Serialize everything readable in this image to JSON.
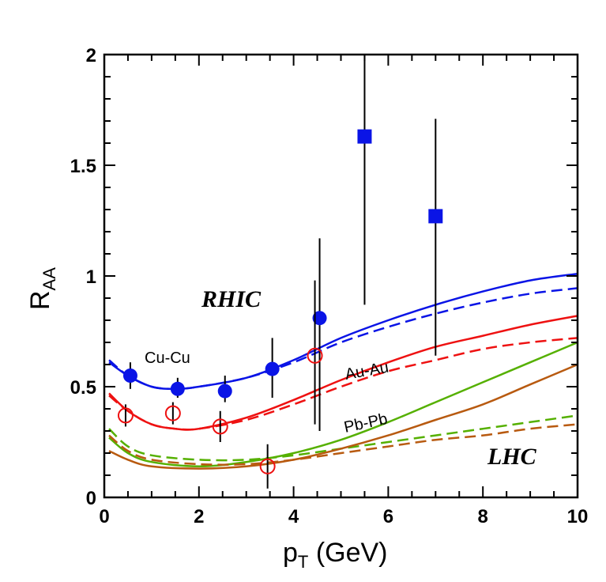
{
  "chart_data": {
    "type": "line",
    "xlabel": "p",
    "xlabel_sub": "T",
    "xlabel_unit": " (GeV)",
    "ylabel": "R",
    "ylabel_sub": "AA",
    "xlim": [
      0,
      10
    ],
    "ylim": [
      0,
      2
    ],
    "xticks": [
      "0",
      "2",
      "4",
      "6",
      "8",
      "10"
    ],
    "yticks": [
      "0",
      "0.5",
      "1",
      "1.5",
      "2"
    ],
    "grid": false,
    "annotations": {
      "rhic": "RHIC",
      "cucu": "Cu-Cu",
      "auau": "Au-Au",
      "pbpb": "Pb-Pb",
      "lhc": "LHC"
    },
    "colors": {
      "cucu": "#0a14e6",
      "auau": "#ee1111",
      "pbpb": "#55b000",
      "lhc2": "#b85a10",
      "err": "#000000"
    },
    "series": [
      {
        "key": "cucu",
        "style": "solid",
        "x": [
          0.1,
          0.5,
          1,
          1.5,
          2,
          3,
          4,
          5,
          6,
          7,
          8,
          9,
          10
        ],
        "y": [
          0.61,
          0.55,
          0.5,
          0.49,
          0.5,
          0.54,
          0.62,
          0.72,
          0.8,
          0.87,
          0.93,
          0.98,
          1.01
        ]
      },
      {
        "key": "cucu",
        "style": "dashed",
        "x": [
          0.1,
          0.5,
          1,
          1.5,
          2,
          3,
          4,
          5,
          6,
          7,
          8,
          9,
          10
        ],
        "y": [
          0.62,
          0.55,
          0.5,
          0.49,
          0.5,
          0.54,
          0.61,
          0.7,
          0.77,
          0.83,
          0.88,
          0.92,
          0.945
        ]
      },
      {
        "key": "auau",
        "style": "solid",
        "x": [
          0.1,
          0.5,
          1,
          1.5,
          2,
          3,
          4,
          5,
          6,
          7,
          8,
          9,
          10
        ],
        "y": [
          0.47,
          0.39,
          0.33,
          0.31,
          0.31,
          0.36,
          0.44,
          0.53,
          0.61,
          0.68,
          0.73,
          0.78,
          0.82
        ]
      },
      {
        "key": "auau",
        "style": "dashed",
        "x": [
          0.1,
          0.5,
          1,
          1.5,
          2,
          3,
          4,
          5,
          6,
          7,
          8,
          9,
          10
        ],
        "y": [
          0.46,
          0.39,
          0.33,
          0.31,
          0.31,
          0.35,
          0.42,
          0.5,
          0.57,
          0.62,
          0.67,
          0.7,
          0.72
        ]
      },
      {
        "key": "pbpb",
        "style": "solid",
        "x": [
          0.1,
          0.5,
          1,
          2,
          3,
          4,
          5,
          6,
          7,
          8,
          9,
          10
        ],
        "y": [
          0.27,
          0.2,
          0.16,
          0.14,
          0.16,
          0.2,
          0.26,
          0.34,
          0.43,
          0.52,
          0.61,
          0.7
        ]
      },
      {
        "key": "pbpb",
        "style": "dashed",
        "x": [
          0.1,
          0.5,
          1,
          2,
          3,
          4,
          5,
          6,
          7,
          8,
          9,
          10
        ],
        "y": [
          0.31,
          0.23,
          0.19,
          0.17,
          0.17,
          0.19,
          0.22,
          0.25,
          0.28,
          0.31,
          0.34,
          0.37
        ]
      },
      {
        "key": "lhc2",
        "style": "solid",
        "x": [
          0.1,
          0.5,
          1,
          2,
          3,
          4,
          5,
          6,
          7,
          8,
          9,
          10
        ],
        "y": [
          0.21,
          0.17,
          0.14,
          0.13,
          0.14,
          0.17,
          0.22,
          0.28,
          0.35,
          0.42,
          0.51,
          0.6
        ]
      },
      {
        "key": "lhc2",
        "style": "dashed",
        "x": [
          0.1,
          0.5,
          1,
          2,
          3,
          4,
          5,
          6,
          7,
          8,
          9,
          10
        ],
        "y": [
          0.28,
          0.21,
          0.17,
          0.15,
          0.15,
          0.17,
          0.2,
          0.23,
          0.26,
          0.28,
          0.31,
          0.33
        ]
      }
    ],
    "points": [
      {
        "key": "cucu",
        "marker": "filled-circle",
        "x": [
          0.55,
          1.55,
          2.55,
          3.55,
          4.55
        ],
        "y": [
          0.55,
          0.49,
          0.48,
          0.58,
          0.81
        ],
        "lo": [
          0.49,
          0.45,
          0.43,
          0.45,
          0.3
        ],
        "hi": [
          0.61,
          0.54,
          0.55,
          0.72,
          1.17
        ]
      },
      {
        "key": "cucu",
        "marker": "filled-square",
        "x": [
          5.5,
          7.0
        ],
        "y": [
          1.63,
          1.27
        ],
        "lo": [
          0.87,
          0.64
        ],
        "hi": [
          2.0,
          1.71
        ]
      },
      {
        "key": "auau",
        "marker": "open-circle",
        "x": [
          0.45,
          1.45,
          2.45,
          3.45,
          4.45
        ],
        "y": [
          0.37,
          0.38,
          0.32,
          0.14,
          0.64
        ],
        "lo": [
          0.32,
          0.33,
          0.25,
          0.04,
          0.33
        ],
        "hi": [
          0.42,
          0.43,
          0.39,
          0.24,
          0.98
        ]
      }
    ]
  }
}
